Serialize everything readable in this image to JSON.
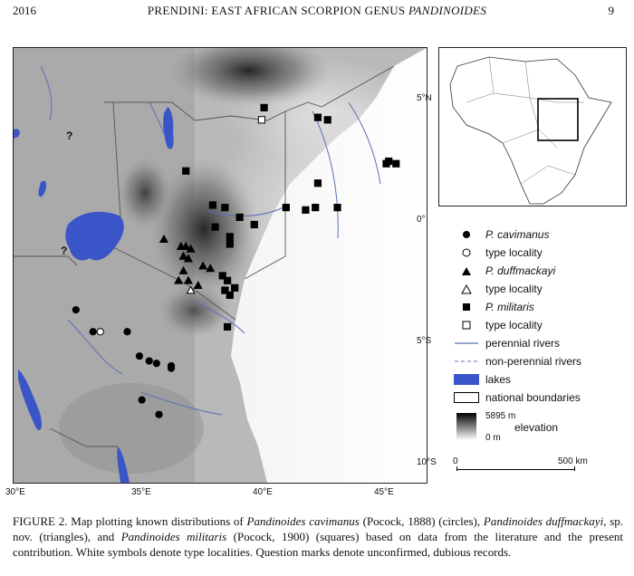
{
  "header": {
    "page_left": "2016",
    "title_prefix": "PRENDINI: EAST AFRICAN SCORPION GENUS ",
    "title_genus": "PANDINOIDES",
    "page_right": "9"
  },
  "map": {
    "lon_labels": [
      "30°E",
      "35°E",
      "40°E",
      "45°E"
    ],
    "lat_labels": [
      "5°N",
      "0°",
      "5°S",
      "10°S"
    ],
    "question_mark": "?",
    "colors": {
      "lake": "#3a55c8",
      "river": "#5a6fb8",
      "boundary": "#555555"
    }
  },
  "localities": {
    "P_cavimanus": [
      [
        32.3,
        -4.0
      ],
      [
        33.0,
        -4.9
      ],
      [
        34.4,
        -4.9
      ],
      [
        34.9,
        -5.9
      ],
      [
        35.3,
        -6.1
      ],
      [
        35.6,
        -6.2
      ],
      [
        36.2,
        -6.3
      ],
      [
        36.2,
        -6.4
      ],
      [
        35.0,
        -7.7
      ],
      [
        35.7,
        -8.3
      ]
    ],
    "P_cavimanus_type": [
      [
        33.3,
        -4.9
      ]
    ],
    "P_duffmackayi": [
      [
        35.9,
        -1.1
      ],
      [
        36.6,
        -1.4
      ],
      [
        36.8,
        -1.4
      ],
      [
        37.0,
        -1.5
      ],
      [
        36.7,
        -1.8
      ],
      [
        36.9,
        -1.9
      ],
      [
        36.7,
        -2.4
      ],
      [
        37.5,
        -2.2
      ],
      [
        37.8,
        -2.3
      ],
      [
        36.5,
        -2.8
      ],
      [
        36.9,
        -2.8
      ],
      [
        37.3,
        -3.0
      ]
    ],
    "P_duffmackayi_type": [
      [
        37.0,
        -3.2
      ]
    ],
    "P_militaris": [
      [
        36.8,
        1.7
      ],
      [
        37.9,
        0.3
      ],
      [
        38.4,
        0.2
      ],
      [
        38.0,
        -0.6
      ],
      [
        39.0,
        -0.2
      ],
      [
        39.6,
        -0.5
      ],
      [
        38.6,
        -1.0
      ],
      [
        38.6,
        -1.3
      ],
      [
        38.3,
        -2.6
      ],
      [
        38.5,
        -2.8
      ],
      [
        38.4,
        -3.2
      ],
      [
        38.8,
        -3.1
      ],
      [
        38.6,
        -3.4
      ],
      [
        38.5,
        -4.7
      ],
      [
        40.0,
        4.3
      ],
      [
        40.9,
        0.2
      ],
      [
        41.7,
        0.1
      ],
      [
        42.1,
        0.2
      ],
      [
        43.0,
        0.2
      ],
      [
        42.2,
        1.2
      ],
      [
        42.2,
        3.9
      ],
      [
        42.6,
        3.8
      ],
      [
        45.0,
        2.0
      ],
      [
        45.1,
        2.1
      ],
      [
        45.4,
        2.0
      ]
    ],
    "P_militaris_type": [
      [
        39.9,
        3.8
      ]
    ]
  },
  "legend": {
    "items": [
      {
        "label": "P. cavimanus",
        "italic": true
      },
      {
        "label": "type locality",
        "italic": false
      },
      {
        "label": "P. duffmackayi",
        "italic": true
      },
      {
        "label": "type locality",
        "italic": false
      },
      {
        "label": "P. militaris",
        "italic": true
      },
      {
        "label": "type locality",
        "italic": false
      },
      {
        "label": "perennial rivers",
        "italic": false
      },
      {
        "label": "non-perennial rivers",
        "italic": false
      },
      {
        "label": "lakes",
        "italic": false
      },
      {
        "label": "national boundaries",
        "italic": false
      }
    ],
    "elevation_max": "5895 m",
    "elevation_min": "0 m",
    "elevation_label": "elevation",
    "scale_min": "0",
    "scale_max": "500 km"
  },
  "caption": {
    "p1": "FIGURE 2. Map plotting known distributions of ",
    "sp1": "Pandinoides cavimanus",
    "p2": " (Pocock, 1888) (circles), ",
    "sp2": "Pandinoides duffmackayi",
    "p3": ", sp. nov. (triangles), and ",
    "sp3": "Pandinoides militaris",
    "p4": " (Pocock, 1900) (squares) based on data from the literature and the present contribution. White symbols denote type localities. Question marks denote unconfirmed, dubious records."
  }
}
